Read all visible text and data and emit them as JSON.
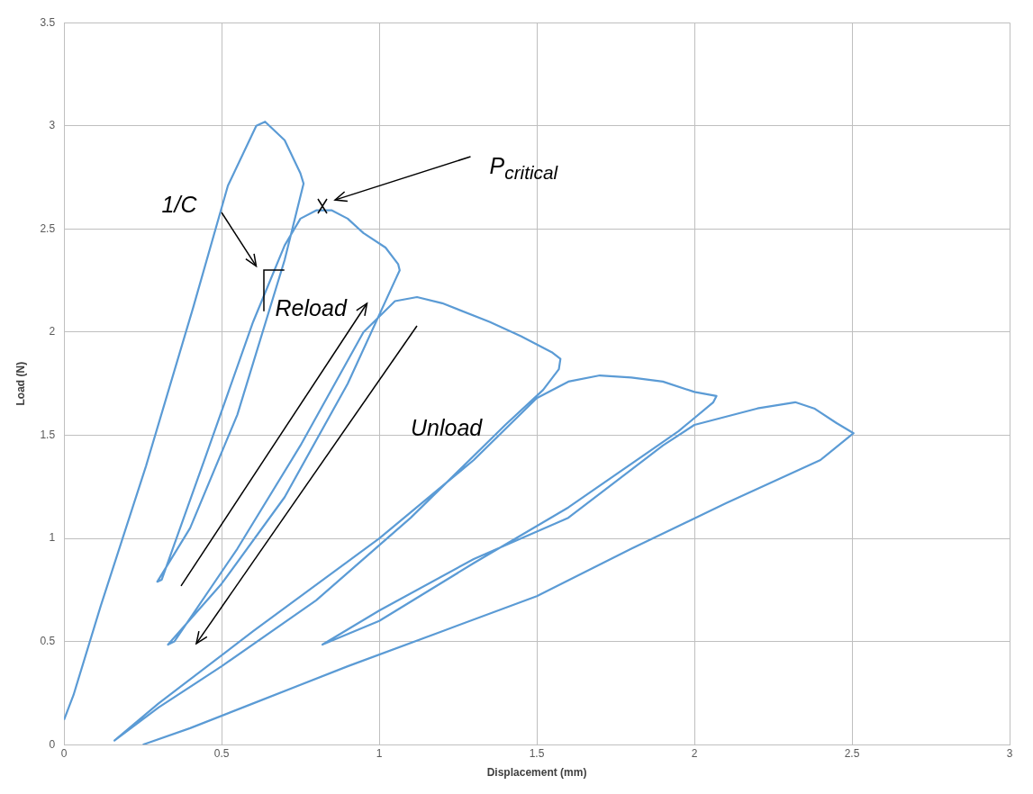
{
  "chart_data": {
    "type": "line",
    "xlabel": "Displacement (mm)",
    "ylabel": "Load (N)",
    "xlim": [
      0,
      3
    ],
    "xticks": [
      0,
      0.5,
      1,
      1.5,
      2,
      2.5,
      3
    ],
    "ylim": [
      0,
      3.5
    ],
    "yticks": [
      0,
      0.5,
      1,
      1.5,
      2,
      2.5,
      3,
      3.5
    ],
    "grid": true,
    "legend": false,
    "marker": "none",
    "line_style": "solid",
    "annotations": [
      "1/C",
      "P$_{critical}$",
      "Reload",
      "Unload"
    ],
    "series": [
      {
        "color": "#5b9bd5",
        "x": [
          0,
          0.03,
          0.116,
          0.26,
          0.41,
          0.52,
          0.61,
          0.638,
          0.7,
          0.75,
          0.76,
          0.7,
          0.55,
          0.4,
          0.296,
          0.31,
          0.45,
          0.6,
          0.7,
          0.75,
          0.8,
          0.85,
          0.9,
          0.95,
          1.02,
          1.06,
          1.065,
          1.05,
          0.9,
          0.7,
          0.5,
          0.33,
          0.35,
          0.55,
          0.75,
          0.95,
          1.05,
          1.12,
          1.2,
          1.35,
          1.45,
          1.55,
          1.575,
          1.57,
          1.52,
          1.4,
          1.1,
          0.8,
          0.5,
          0.3,
          0.16,
          0.3,
          0.6,
          1.0,
          1.3,
          1.5,
          1.6,
          1.7,
          1.8,
          1.9,
          2.0,
          2.07,
          2.06,
          1.95,
          1.6,
          1.3,
          1.0,
          0.82,
          1.0,
          1.3,
          1.6,
          1.9,
          2.0,
          2.2,
          2.32,
          2.38,
          2.45,
          2.505,
          2.4,
          2.1,
          1.8,
          1.5,
          1.2,
          0.9,
          0.6,
          0.4,
          0.25
        ],
        "values": [
          0.12,
          0.24,
          0.67,
          1.35,
          2.12,
          2.71,
          3.0,
          3.02,
          2.93,
          2.77,
          2.72,
          2.35,
          1.6,
          1.05,
          0.79,
          0.8,
          1.4,
          2.05,
          2.42,
          2.55,
          2.59,
          2.59,
          2.55,
          2.48,
          2.41,
          2.33,
          2.3,
          2.25,
          1.75,
          1.2,
          0.78,
          0.485,
          0.5,
          0.95,
          1.45,
          2.0,
          2.15,
          2.17,
          2.14,
          2.05,
          1.98,
          1.9,
          1.87,
          1.82,
          1.72,
          1.55,
          1.1,
          0.7,
          0.38,
          0.18,
          0.02,
          0.2,
          0.55,
          1.0,
          1.38,
          1.68,
          1.76,
          1.79,
          1.78,
          1.76,
          1.71,
          1.69,
          1.66,
          1.52,
          1.15,
          0.88,
          0.6,
          0.485,
          0.65,
          0.9,
          1.1,
          1.45,
          1.55,
          1.63,
          1.66,
          1.63,
          1.56,
          1.51,
          1.38,
          1.17,
          0.95,
          0.72,
          0.55,
          0.38,
          0.2,
          0.08,
          0
        ]
      }
    ]
  }
}
